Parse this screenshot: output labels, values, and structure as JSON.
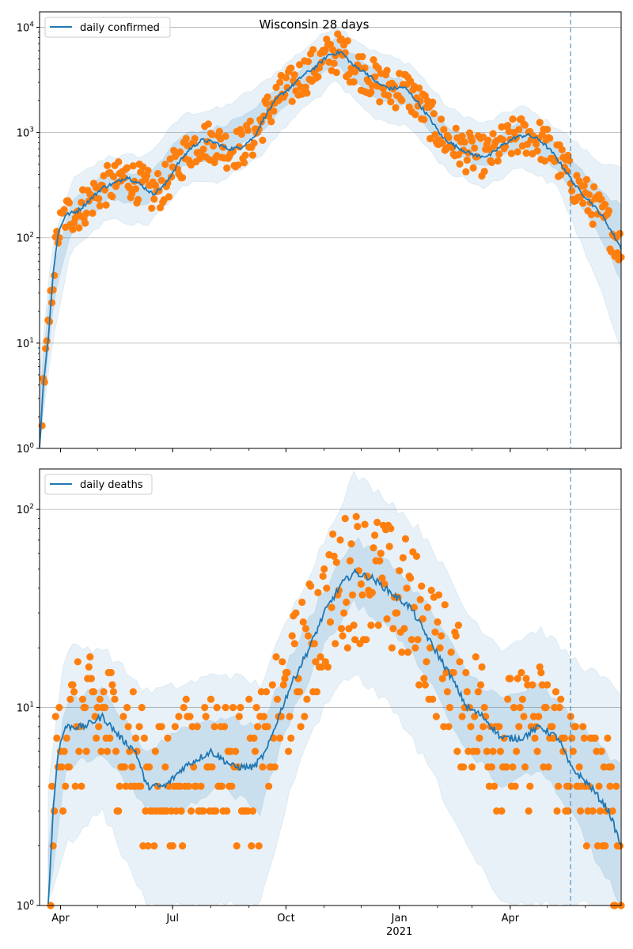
{
  "title": "Wisconsin 28 days",
  "chart_data": [
    {
      "type": "line",
      "legend": "daily confirmed",
      "legend_position": "top-left",
      "yscale": "log",
      "ylim": [
        1,
        14000
      ],
      "xlim": [
        "2020-03-15",
        "2021-06-30"
      ],
      "grid": "y-major",
      "yticks": [
        {
          "value": 1,
          "exp": "0"
        },
        {
          "value": 10,
          "exp": "1"
        },
        {
          "value": 100,
          "exp": "2"
        },
        {
          "value": 1000,
          "exp": "3"
        },
        {
          "value": 10000,
          "exp": "4"
        }
      ],
      "forecast_start": "2021-05-20",
      "series": {
        "median_line": [
          [
            "2020-03-15",
            1
          ],
          [
            "2020-03-18",
            4
          ],
          [
            "2020-03-22",
            11
          ],
          [
            "2020-03-26",
            45
          ],
          [
            "2020-03-30",
            110
          ],
          [
            "2020-04-05",
            165
          ],
          [
            "2020-04-15",
            180
          ],
          [
            "2020-04-25",
            230
          ],
          [
            "2020-05-05",
            300
          ],
          [
            "2020-05-15",
            330
          ],
          [
            "2020-05-25",
            380
          ],
          [
            "2020-06-05",
            320
          ],
          [
            "2020-06-15",
            260
          ],
          [
            "2020-06-25",
            320
          ],
          [
            "2020-07-05",
            500
          ],
          [
            "2020-07-15",
            700
          ],
          [
            "2020-07-25",
            850
          ],
          [
            "2020-08-05",
            800
          ],
          [
            "2020-08-15",
            700
          ],
          [
            "2020-08-25",
            720
          ],
          [
            "2020-09-05",
            900
          ],
          [
            "2020-09-15",
            1500
          ],
          [
            "2020-09-25",
            2200
          ],
          [
            "2020-10-05",
            2700
          ],
          [
            "2020-10-15",
            3500
          ],
          [
            "2020-10-25",
            4200
          ],
          [
            "2020-11-05",
            5500
          ],
          [
            "2020-11-15",
            5800
          ],
          [
            "2020-11-25",
            4300
          ],
          [
            "2020-12-05",
            3700
          ],
          [
            "2020-12-15",
            2900
          ],
          [
            "2020-12-25",
            2600
          ],
          [
            "2021-01-05",
            2700
          ],
          [
            "2021-01-15",
            2000
          ],
          [
            "2021-01-25",
            1400
          ],
          [
            "2021-02-05",
            900
          ],
          [
            "2021-02-15",
            750
          ],
          [
            "2021-02-25",
            650
          ],
          [
            "2021-03-05",
            600
          ],
          [
            "2021-03-15",
            600
          ],
          [
            "2021-03-25",
            750
          ],
          [
            "2021-04-05",
            900
          ],
          [
            "2021-04-15",
            950
          ],
          [
            "2021-04-25",
            850
          ],
          [
            "2021-05-05",
            650
          ],
          [
            "2021-05-15",
            450
          ],
          [
            "2021-05-25",
            300
          ],
          [
            "2021-06-05",
            220
          ],
          [
            "2021-06-15",
            160
          ],
          [
            "2021-06-30",
            80
          ]
        ],
        "band_inner": [
          [
            "2020-03-15",
            1,
            3
          ],
          [
            "2020-03-25",
            20,
            50
          ],
          [
            "2020-04-10",
            120,
            220
          ],
          [
            "2020-05-10",
            230,
            420
          ],
          [
            "2020-06-10",
            200,
            400
          ],
          [
            "2020-07-10",
            500,
            950
          ],
          [
            "2020-08-10",
            550,
            1150
          ],
          [
            "2020-09-10",
            1000,
            1900
          ],
          [
            "2020-10-10",
            2300,
            3800
          ],
          [
            "2020-11-10",
            4500,
            7500
          ],
          [
            "2020-12-10",
            2200,
            4000
          ],
          [
            "2021-01-10",
            1700,
            3000
          ],
          [
            "2021-02-10",
            650,
            1100
          ],
          [
            "2021-03-10",
            480,
            800
          ],
          [
            "2021-04-10",
            750,
            1200
          ],
          [
            "2021-05-10",
            450,
            750
          ],
          [
            "2021-06-10",
            120,
            300
          ],
          [
            "2021-06-30",
            40,
            200
          ]
        ],
        "band_outer": [
          [
            "2020-03-15",
            1,
            5
          ],
          [
            "2020-03-25",
            10,
            80
          ],
          [
            "2020-04-10",
            80,
            350
          ],
          [
            "2020-05-10",
            150,
            600
          ],
          [
            "2020-06-10",
            130,
            600
          ],
          [
            "2020-07-10",
            320,
            1500
          ],
          [
            "2020-08-10",
            350,
            1700
          ],
          [
            "2020-09-10",
            600,
            2800
          ],
          [
            "2020-10-10",
            1500,
            5500
          ],
          [
            "2020-11-10",
            3000,
            10500
          ],
          [
            "2020-12-10",
            1400,
            6000
          ],
          [
            "2021-01-10",
            1100,
            4500
          ],
          [
            "2021-02-10",
            420,
            1700
          ],
          [
            "2021-03-10",
            300,
            1200
          ],
          [
            "2021-04-10",
            480,
            1800
          ],
          [
            "2021-05-10",
            300,
            1100
          ],
          [
            "2021-06-10",
            40,
            550
          ],
          [
            "2021-06-30",
            9,
            450
          ]
        ]
      }
    },
    {
      "type": "line",
      "legend": "daily deaths",
      "legend_position": "top-left",
      "yscale": "log",
      "ylim": [
        1,
        160
      ],
      "xlim": [
        "2020-03-15",
        "2021-06-30"
      ],
      "grid": "y-major",
      "yticks": [
        {
          "value": 1,
          "exp": "0"
        },
        {
          "value": 10,
          "exp": "1"
        },
        {
          "value": 100,
          "exp": "2"
        }
      ],
      "xticks": [
        {
          "date": "2020-04-01",
          "label": "Apr"
        },
        {
          "date": "2020-07-01",
          "label": "Jul"
        },
        {
          "date": "2020-10-01",
          "label": "Oct"
        },
        {
          "date": "2021-01-01",
          "label": "Jan",
          "sublabel": "2021"
        },
        {
          "date": "2021-04-01",
          "label": "Apr"
        }
      ],
      "forecast_start": "2021-05-20",
      "series": {
        "median_line": [
          [
            "2020-03-22",
            1
          ],
          [
            "2020-03-26",
            3
          ],
          [
            "2020-03-30",
            6
          ],
          [
            "2020-04-05",
            8
          ],
          [
            "2020-04-20",
            8
          ],
          [
            "2020-05-05",
            9
          ],
          [
            "2020-05-20",
            7
          ],
          [
            "2020-06-01",
            6
          ],
          [
            "2020-06-10",
            4
          ],
          [
            "2020-06-25",
            4
          ],
          [
            "2020-07-10",
            5
          ],
          [
            "2020-08-01",
            6
          ],
          [
            "2020-08-20",
            5
          ],
          [
            "2020-09-05",
            5
          ],
          [
            "2020-09-15",
            6
          ],
          [
            "2020-09-25",
            9
          ],
          [
            "2020-10-05",
            13
          ],
          [
            "2020-10-20",
            20
          ],
          [
            "2020-11-01",
            30
          ],
          [
            "2020-11-15",
            42
          ],
          [
            "2020-11-25",
            48
          ],
          [
            "2020-12-10",
            45
          ],
          [
            "2020-12-25",
            38
          ],
          [
            "2021-01-10",
            32
          ],
          [
            "2021-01-25",
            22
          ],
          [
            "2021-02-10",
            15
          ],
          [
            "2021-02-25",
            10
          ],
          [
            "2021-03-10",
            9
          ],
          [
            "2021-03-25",
            7
          ],
          [
            "2021-04-10",
            7
          ],
          [
            "2021-04-25",
            8
          ],
          [
            "2021-05-10",
            7
          ],
          [
            "2021-05-20",
            5
          ],
          [
            "2021-06-05",
            4
          ],
          [
            "2021-06-20",
            3
          ],
          [
            "2021-06-30",
            2
          ]
        ],
        "band_inner": [
          [
            "2020-03-22",
            1,
            2
          ],
          [
            "2020-04-05",
            5,
            11
          ],
          [
            "2020-05-05",
            6,
            12
          ],
          [
            "2020-06-10",
            3,
            6
          ],
          [
            "2020-07-10",
            3,
            8
          ],
          [
            "2020-08-10",
            4,
            9
          ],
          [
            "2020-09-10",
            3,
            8
          ],
          [
            "2020-10-05",
            9,
            18
          ],
          [
            "2020-11-01",
            20,
            40
          ],
          [
            "2020-11-25",
            34,
            70
          ],
          [
            "2020-12-25",
            25,
            55
          ],
          [
            "2021-01-25",
            14,
            32
          ],
          [
            "2021-02-25",
            6,
            15
          ],
          [
            "2021-03-25",
            4,
            11
          ],
          [
            "2021-04-25",
            5,
            13
          ],
          [
            "2021-05-20",
            3,
            9
          ],
          [
            "2021-06-30",
            1,
            5
          ]
        ],
        "band_outer": [
          [
            "2020-03-22",
            1,
            4
          ],
          [
            "2020-04-05",
            2,
            20
          ],
          [
            "2020-05-05",
            3,
            20
          ],
          [
            "2020-06-10",
            1,
            12
          ],
          [
            "2020-07-10",
            1,
            13
          ],
          [
            "2020-08-10",
            1,
            15
          ],
          [
            "2020-09-10",
            1,
            13
          ],
          [
            "2020-10-05",
            4,
            30
          ],
          [
            "2020-11-01",
            10,
            70
          ],
          [
            "2020-11-25",
            15,
            150
          ],
          [
            "2020-12-25",
            10,
            110
          ],
          [
            "2021-01-25",
            5,
            70
          ],
          [
            "2021-02-25",
            2,
            30
          ],
          [
            "2021-03-25",
            1,
            20
          ],
          [
            "2021-04-25",
            1,
            25
          ],
          [
            "2021-05-20",
            1,
            18
          ],
          [
            "2021-06-30",
            1,
            12
          ]
        ]
      }
    }
  ]
}
